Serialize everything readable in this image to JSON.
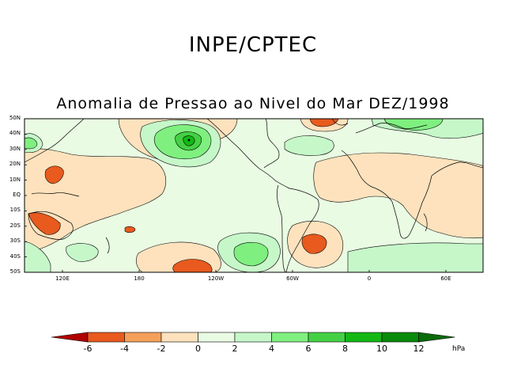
{
  "titles": {
    "main": "INPE/CPTEC",
    "subtitle": "Anomalia de Pressao ao Nivel do Mar DEZ/1998"
  },
  "map": {
    "lat_labels": [
      "50N",
      "40N",
      "30N",
      "20N",
      "10N",
      "EQ",
      "10S",
      "20S",
      "30S",
      "40S",
      "50S"
    ],
    "lon_labels": [
      "120E",
      "180",
      "120W",
      "60W",
      "0",
      "60E"
    ]
  },
  "colorbar": {
    "labels": [
      "-6",
      "-4",
      "-2",
      "0",
      "2",
      "4",
      "6",
      "8",
      "10",
      "12"
    ],
    "unit": "hPa",
    "colors": [
      "#b00000",
      "#e85a1e",
      "#f5a05a",
      "#fde2bd",
      "#e9fbe3",
      "#c6f7c9",
      "#7ff07f",
      "#44d044",
      "#14b814",
      "#0a8a0a",
      "#0a6b0a"
    ]
  },
  "colors": {
    "neg_light": "#fde2bd",
    "neg_mid": "#f5a05a",
    "neg_strong": "#e85a1e",
    "pos_pale": "#e9fbe3",
    "pos_light": "#c6f7c9",
    "pos_mid": "#7ff07f",
    "pos_strong": "#44d044",
    "pos_dark": "#14b814"
  }
}
